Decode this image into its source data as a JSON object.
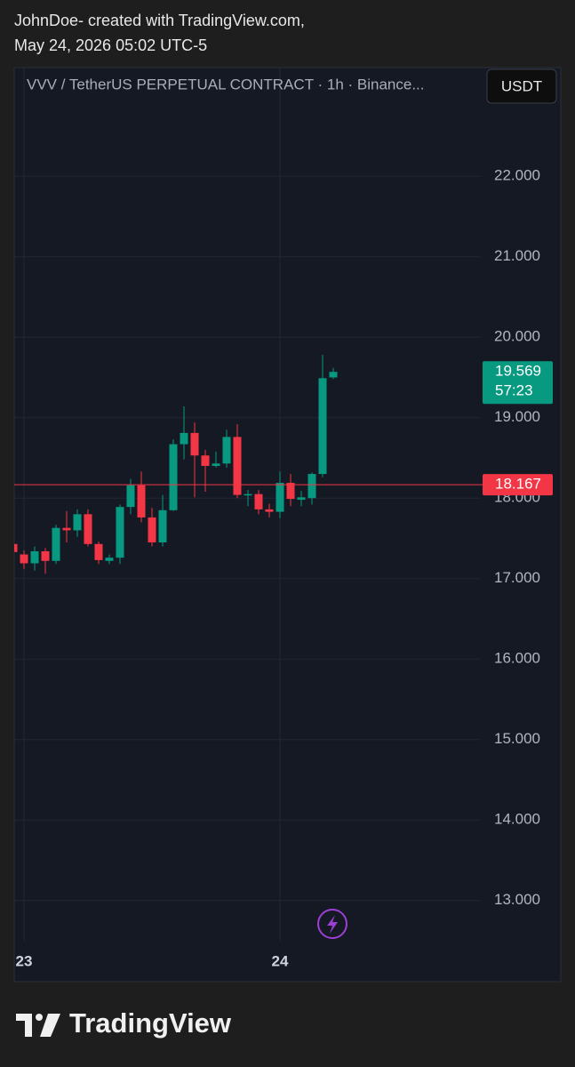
{
  "header": {
    "line1": "JohnDoe- created with TradingView.com,",
    "line2": "May 24, 2026 05:02 UTC-5"
  },
  "chart_data": {
    "type": "candlestick",
    "title": "VVV / TetherUS PERPETUAL CONTRACT · 1h · Binance...",
    "currency": "USDT",
    "categories": [
      null,
      "23",
      null,
      null,
      null,
      null,
      null,
      null,
      null,
      null,
      null,
      null,
      null,
      null,
      null,
      null,
      null,
      null,
      null,
      null,
      null,
      null,
      null,
      null,
      null,
      "24",
      null,
      null,
      null,
      null,
      null
    ],
    "open": [
      17.43,
      17.3,
      17.19,
      17.34,
      17.22,
      17.63,
      17.6,
      17.8,
      17.43,
      17.22,
      17.26,
      17.89,
      18.16,
      17.76,
      17.45,
      17.85,
      18.67,
      18.81,
      18.53,
      18.4,
      18.43,
      18.76,
      18.04,
      18.05,
      17.86,
      17.83,
      18.19,
      17.98,
      18.0,
      18.3,
      19.5
    ],
    "high": [
      17.47,
      17.35,
      17.4,
      17.38,
      17.67,
      17.84,
      17.86,
      17.86,
      17.46,
      17.3,
      17.92,
      18.24,
      18.33,
      17.88,
      18.04,
      18.73,
      19.14,
      18.94,
      18.6,
      18.58,
      18.85,
      18.92,
      18.1,
      18.1,
      17.93,
      18.33,
      18.3,
      18.09,
      18.32,
      19.78,
      19.62
    ],
    "low": [
      17.28,
      17.12,
      17.1,
      17.06,
      17.18,
      17.45,
      17.52,
      17.4,
      17.18,
      17.18,
      17.18,
      17.8,
      17.7,
      17.4,
      17.4,
      17.84,
      18.48,
      18.01,
      18.08,
      18.38,
      18.38,
      18.0,
      17.9,
      17.8,
      17.76,
      17.75,
      17.9,
      17.9,
      17.92,
      18.26,
      19.48
    ],
    "close": [
      17.33,
      17.19,
      17.34,
      17.22,
      17.63,
      17.6,
      17.8,
      17.43,
      17.23,
      17.26,
      17.89,
      18.16,
      17.76,
      17.45,
      17.85,
      18.67,
      18.81,
      18.53,
      18.4,
      18.43,
      18.76,
      18.04,
      18.05,
      17.86,
      17.83,
      18.19,
      17.99,
      18.01,
      18.3,
      19.49,
      19.569
    ],
    "up_color": "#089981",
    "down_color": "#f23645",
    "ylim": [
      12.5,
      23.35
    ],
    "yticks": [
      {
        "value": 13,
        "label": "13.000"
      },
      {
        "value": 14,
        "label": "14.000"
      },
      {
        "value": 15,
        "label": "15.000"
      },
      {
        "value": 16,
        "label": "16.000"
      },
      {
        "value": 17,
        "label": "17.000"
      },
      {
        "value": 18,
        "label": "18.000"
      },
      {
        "value": 19,
        "label": "19.000"
      },
      {
        "value": 20,
        "label": "20.000"
      },
      {
        "value": 21,
        "label": "21.000"
      },
      {
        "value": 22,
        "label": "22.000"
      }
    ],
    "grid": true,
    "last_price": 19.569,
    "countdown": "57:23",
    "price_line": 18.167,
    "price_line_color": "#f23645"
  },
  "footer": {
    "brand": "TradingView"
  }
}
